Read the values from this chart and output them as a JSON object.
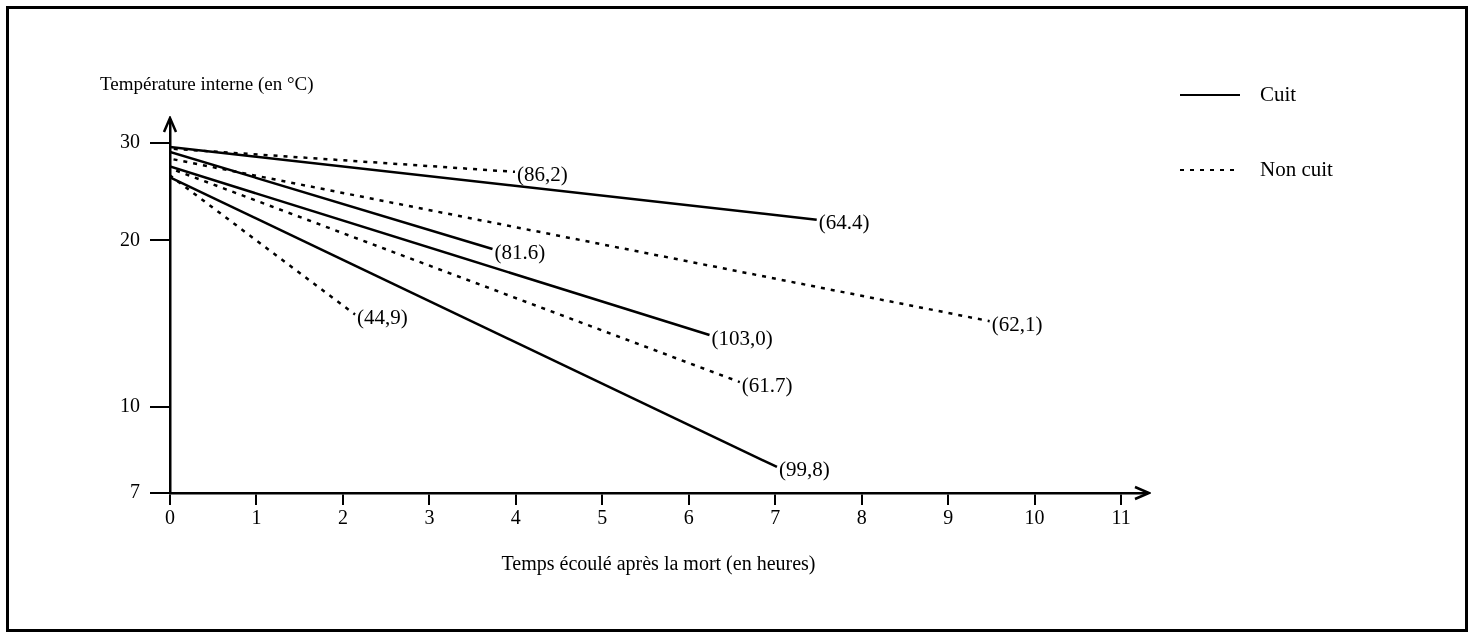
{
  "chart_data": {
    "type": "line",
    "ylabel": "Température interne (en °C)",
    "xlabel": "Temps écoulé après la mort (en heures)",
    "log": "y",
    "xlim": [
      0,
      11.3
    ],
    "xticks": [
      0,
      1,
      2,
      3,
      4,
      5,
      6,
      7,
      8,
      9,
      10,
      11
    ],
    "ylim": [
      7,
      33
    ],
    "yticks": [
      7,
      10,
      20,
      30
    ],
    "grid": false,
    "legend": "top right",
    "marker": "none",
    "series": [
      {
        "name": "Cuit",
        "color": "#000000",
        "line_style": "solid",
        "x": [
          0,
          7.48
        ],
        "values": [
          29.5,
          21.8
        ]
      },
      {
        "color": "#000000",
        "line_style": "solid",
        "x": [
          0,
          3.73
        ],
        "values": [
          28.9,
          19.3
        ]
      },
      {
        "color": "#000000",
        "line_style": "solid",
        "x": [
          0,
          6.24
        ],
        "values": [
          27.2,
          13.5
        ]
      },
      {
        "color": "#000000",
        "line_style": "solid",
        "x": [
          0,
          7.02
        ],
        "values": [
          26.0,
          7.8
        ]
      },
      {
        "name": "Non cuit",
        "color": "#000000",
        "line_style": "dotted",
        "x": [
          0,
          3.99
        ],
        "values": [
          29.3,
          26.6
        ]
      },
      {
        "color": "#000000",
        "line_style": "dotted",
        "x": [
          0,
          9.48
        ],
        "values": [
          28.1,
          14.3
        ]
      },
      {
        "color": "#000000",
        "line_style": "dotted",
        "x": [
          0,
          6.59
        ],
        "values": [
          27.0,
          11.1
        ]
      },
      {
        "color": "#000000",
        "line_style": "dotted",
        "x": [
          0,
          2.14
        ],
        "values": [
          26.2,
          14.7
        ]
      }
    ],
    "annotations": [
      {
        "text": "(64.4)",
        "x": 7.48,
        "y": 21.8
      },
      {
        "text": "(81.6)",
        "x": 3.73,
        "y": 19.3
      },
      {
        "text": "(103,0)",
        "x": 6.24,
        "y": 13.5
      },
      {
        "text": "(99,8)",
        "x": 7.02,
        "y": 7.8
      },
      {
        "text": "(86,2)",
        "x": 3.99,
        "y": 26.6
      },
      {
        "text": "(62,1)",
        "x": 9.48,
        "y": 14.3
      },
      {
        "text": "(61.7)",
        "x": 6.59,
        "y": 11.1
      },
      {
        "text": "(44,9)",
        "x": 2.14,
        "y": 14.7
      }
    ]
  }
}
